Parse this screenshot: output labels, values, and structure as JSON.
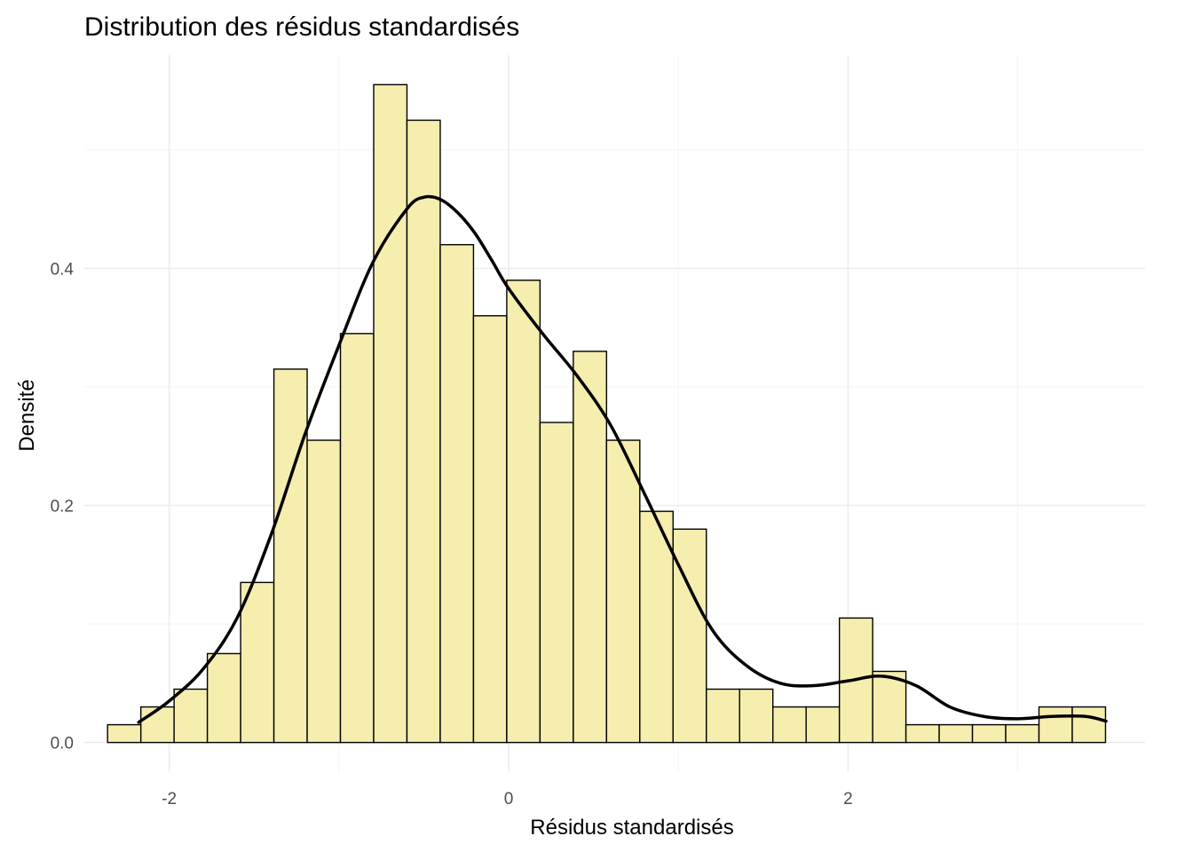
{
  "chart_data": {
    "type": "bar",
    "title": "Distribution des résidus standardisés",
    "xlabel": "Résidus standardisés",
    "ylabel": "Densité",
    "xlim": [
      -2.5,
      3.75
    ],
    "ylim": [
      -0.025,
      0.58
    ],
    "x_ticks": [
      {
        "value": -2,
        "label": "-2"
      },
      {
        "value": 0,
        "label": "0"
      },
      {
        "value": 2,
        "label": "2"
      }
    ],
    "y_ticks": [
      {
        "value": 0.0,
        "label": "0.0"
      },
      {
        "value": 0.2,
        "label": "0.2"
      },
      {
        "value": 0.4,
        "label": "0.4"
      }
    ],
    "grid": true,
    "bar_fill": "#f5eeae",
    "bar_outline": "#000000",
    "bin_width": 0.196,
    "bins": [
      {
        "x": -2.265,
        "density": 0.015
      },
      {
        "x": -2.069,
        "density": 0.03
      },
      {
        "x": -1.873,
        "density": 0.045
      },
      {
        "x": -1.677,
        "density": 0.075
      },
      {
        "x": -1.481,
        "density": 0.135
      },
      {
        "x": -1.285,
        "density": 0.315
      },
      {
        "x": -1.089,
        "density": 0.255
      },
      {
        "x": -0.893,
        "density": 0.345
      },
      {
        "x": -0.697,
        "density": 0.555
      },
      {
        "x": -0.501,
        "density": 0.525
      },
      {
        "x": -0.305,
        "density": 0.42
      },
      {
        "x": -0.109,
        "density": 0.36
      },
      {
        "x": 0.087,
        "density": 0.39
      },
      {
        "x": 0.283,
        "density": 0.27
      },
      {
        "x": 0.479,
        "density": 0.33
      },
      {
        "x": 0.675,
        "density": 0.255
      },
      {
        "x": 0.871,
        "density": 0.195
      },
      {
        "x": 1.067,
        "density": 0.18
      },
      {
        "x": 1.263,
        "density": 0.045
      },
      {
        "x": 1.459,
        "density": 0.045
      },
      {
        "x": 1.655,
        "density": 0.03
      },
      {
        "x": 1.851,
        "density": 0.03
      },
      {
        "x": 2.047,
        "density": 0.105
      },
      {
        "x": 2.243,
        "density": 0.06
      },
      {
        "x": 2.439,
        "density": 0.015
      },
      {
        "x": 2.635,
        "density": 0.015
      },
      {
        "x": 2.831,
        "density": 0.015
      },
      {
        "x": 3.027,
        "density": 0.015
      },
      {
        "x": 3.223,
        "density": 0.03
      },
      {
        "x": 3.419,
        "density": 0.03
      }
    ],
    "density_curve": {
      "color": "#000000",
      "x": [
        -2.18,
        -2.0,
        -1.8,
        -1.6,
        -1.4,
        -1.2,
        -1.0,
        -0.8,
        -0.6,
        -0.5,
        -0.4,
        -0.3,
        -0.2,
        -0.1,
        0.0,
        0.2,
        0.4,
        0.6,
        0.8,
        1.0,
        1.2,
        1.4,
        1.6,
        1.8,
        2.0,
        2.2,
        2.4,
        2.6,
        2.8,
        3.0,
        3.2,
        3.4,
        3.52
      ],
      "y": [
        0.017,
        0.035,
        0.062,
        0.105,
        0.175,
        0.26,
        0.335,
        0.405,
        0.45,
        0.46,
        0.458,
        0.447,
        0.43,
        0.407,
        0.383,
        0.345,
        0.31,
        0.268,
        0.21,
        0.15,
        0.095,
        0.065,
        0.05,
        0.048,
        0.052,
        0.056,
        0.048,
        0.03,
        0.022,
        0.02,
        0.022,
        0.022,
        0.018
      ]
    }
  }
}
